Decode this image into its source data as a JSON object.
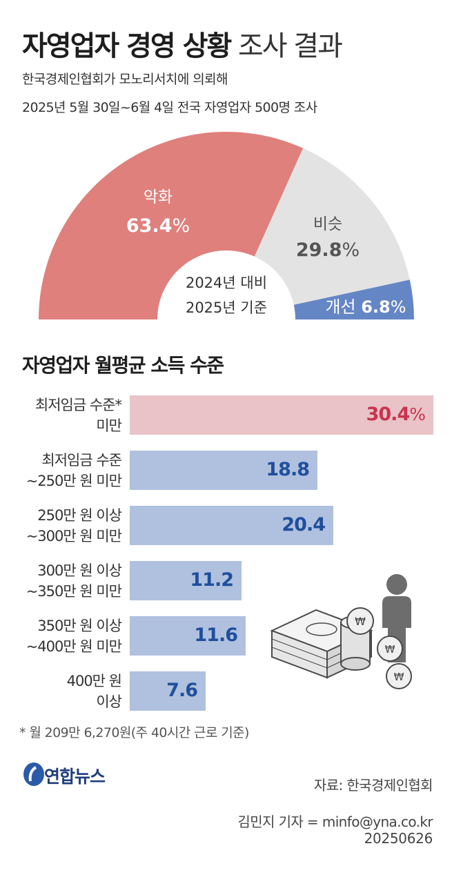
{
  "header": {
    "title_bold": "자영업자 경영 상황",
    "title_light": "조사 결과",
    "subtitle_1": "한국경제인협회가 모노리서치에 의뢰해",
    "subtitle_2": "2025년 5월 30일~6월 4일 전국 자영업자 500명 조사"
  },
  "pie": {
    "center_line1": "2024년 대비",
    "center_line2": "2025년 기준",
    "slices": [
      {
        "label": "악화",
        "value": "63.4",
        "unit": "%",
        "color": "#df807c"
      },
      {
        "label": "비슷",
        "value": "29.8",
        "unit": "%",
        "color": "#e3e3e3"
      },
      {
        "label": "개선",
        "value": "6.8",
        "unit": "%",
        "color": "#6586c5"
      }
    ]
  },
  "bars_section": {
    "title": "자영업자 월평균 소득 수준",
    "note": "* 월 209만 6,270원(주 40시간 근로 기준)"
  },
  "chart_data": [
    {
      "type": "pie",
      "title": "",
      "categories": [
        "악화",
        "비슷",
        "개선"
      ],
      "values": [
        63.4,
        29.8,
        6.8
      ],
      "colors": [
        "#df807c",
        "#e3e3e3",
        "#6586c5"
      ]
    },
    {
      "type": "bar",
      "title": "자영업자 월평균 소득 수준",
      "categories": [
        [
          "최저임금 수준*",
          "미만"
        ],
        [
          "최저임금 수준",
          "~250만 원 미만"
        ],
        [
          "250만 원 이상",
          "~300만 원 미만"
        ],
        [
          "300만 원 이상",
          "~350만 원 미만"
        ],
        [
          "350만 원 이상",
          "~400만 원 미만"
        ],
        [
          "400만 원",
          "이상"
        ]
      ],
      "values": [
        30.4,
        18.8,
        20.4,
        11.2,
        11.6,
        7.6
      ],
      "value_labels": [
        "30.4",
        "18.8",
        "20.4",
        "11.2",
        "11.6",
        "7.6"
      ],
      "first_unit": "%",
      "highlight_index": 0,
      "highlight_color": "#e9c3c8",
      "highlight_text_color": "#c8344e",
      "bar_color": "#b0c0df",
      "text_color": "#1f4f9c",
      "orientation": "horizontal"
    }
  ],
  "footer": {
    "logo": "연합뉴스",
    "source": "자료: 한국경제인협회",
    "reporter": "김민지 기자 = minfo@yna.co.kr",
    "date": "20250626"
  }
}
